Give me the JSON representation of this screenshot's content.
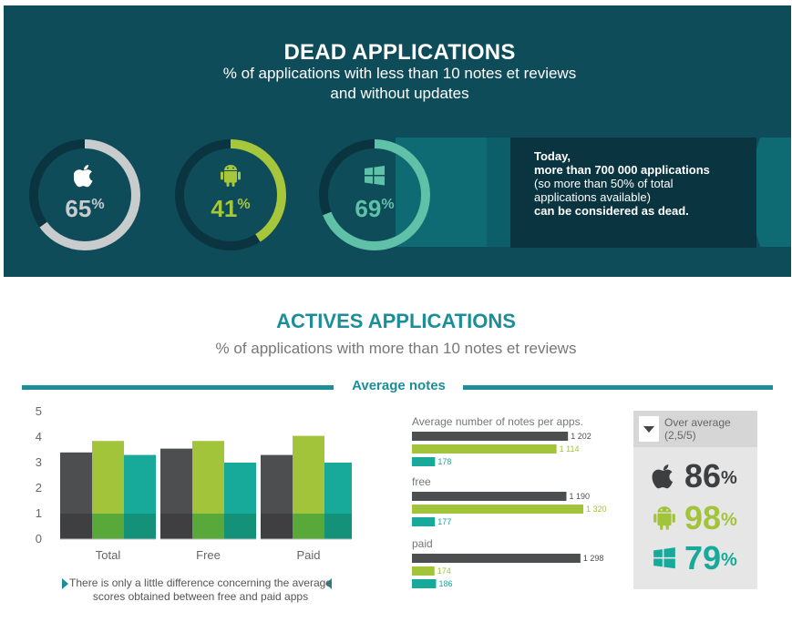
{
  "header": {
    "title": "DEAD APPLICATIONS",
    "subtitle_line1": "% of applications with less than 10 notes et reviews",
    "subtitle_line2": "and without updates"
  },
  "dead": [
    {
      "platform": "apple-icon",
      "value": 65,
      "color": "#c9cccd"
    },
    {
      "platform": "android-icon",
      "value": 41,
      "color": "#a6c63b"
    },
    {
      "platform": "windows-icon",
      "value": 69,
      "color": "#5fc1a8"
    }
  ],
  "dead_box": {
    "line1": "Today,",
    "line2": "more than 700 000 applications",
    "line3": "(so more than 50% of total",
    "line4": "applications available)",
    "line5": "can be considered as dead."
  },
  "actives": {
    "title": "ACTIVES APPLICATIONS",
    "subtitle": "% of applications with more than 10 notes et reviews",
    "section_label": "Average notes"
  },
  "colors": {
    "dark": "#4d4e50",
    "green": "#a2c43b",
    "teal": "#17a99a",
    "accent": "#1c8e99",
    "banner": "#0f4c59"
  },
  "chart_data": [
    {
      "type": "bar",
      "categories": [
        "Total",
        "Free",
        "Paid"
      ],
      "series": [
        {
          "platform": "apple",
          "values": [
            3.4,
            3.55,
            3.3
          ]
        },
        {
          "platform": "android",
          "values": [
            3.85,
            3.85,
            4.05
          ]
        },
        {
          "platform": "windows",
          "values": [
            3.3,
            3.0,
            3.0
          ]
        }
      ],
      "yticks": [
        0,
        1,
        2,
        3,
        4,
        5
      ],
      "ylim": [
        0,
        5
      ],
      "note": "There is only a little difference concerning the average scores obtained between free and paid apps"
    },
    {
      "type": "bar",
      "orientation": "horizontal",
      "groups": [
        {
          "label": "Average number of notes per apps.",
          "values": [
            1202,
            1114,
            178
          ],
          "labels": [
            "1 202",
            "1 114",
            "178"
          ]
        },
        {
          "label": "free",
          "values": [
            1190,
            1320,
            177
          ],
          "labels": [
            "1 190",
            "1 320",
            "177"
          ]
        },
        {
          "label": "paid",
          "values": [
            1298,
            174,
            186
          ],
          "labels": [
            "1 298",
            "174",
            "186"
          ]
        }
      ],
      "xlim": [
        0,
        1320
      ]
    }
  ],
  "over_average": {
    "label": "Over average",
    "value_text": "(2,5/5)",
    "rows": [
      {
        "platform": "apple-icon",
        "value": 86
      },
      {
        "platform": "android-icon",
        "value": 98
      },
      {
        "platform": "windows-icon",
        "value": 79
      }
    ],
    "pct_sign": "%"
  }
}
